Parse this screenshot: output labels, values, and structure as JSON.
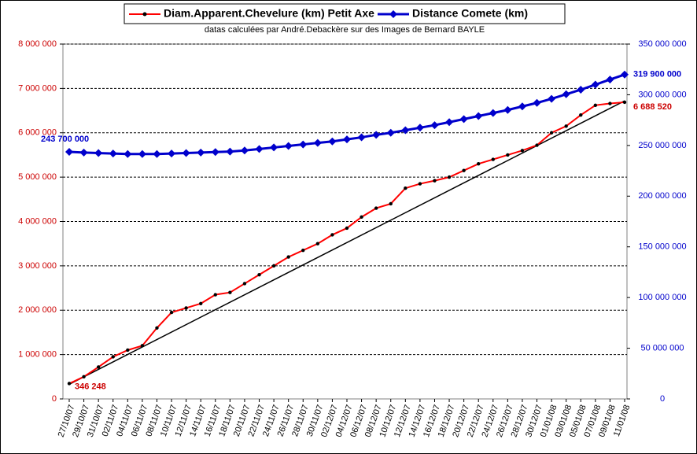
{
  "chart_data": {
    "type": "line",
    "subtitle": "datas calculées par André.Debackère sur des Images de Bernard BAYLE",
    "categories": [
      "27/10/07",
      "29/10/07",
      "31/10/07",
      "02/11/07",
      "04/11/07",
      "06/11/07",
      "08/11/07",
      "10/11/07",
      "12/11/07",
      "14/11/07",
      "16/11/07",
      "18/11/07",
      "20/11/07",
      "22/11/07",
      "24/11/07",
      "26/11/07",
      "28/11/07",
      "30/11/07",
      "02/12/07",
      "04/12/07",
      "06/12/07",
      "08/12/07",
      "10/12/07",
      "12/12/07",
      "14/12/07",
      "16/12/07",
      "18/12/07",
      "20/12/07",
      "22/12/07",
      "24/12/07",
      "26/12/07",
      "28/12/07",
      "30/12/07",
      "01/01/08",
      "03/01/08",
      "05/01/08",
      "07/01/08",
      "09/01/08",
      "11/01/08"
    ],
    "series": [
      {
        "name": "Diam.Apparent.Chevelure (km) Petit Axe",
        "color": "#ff0000",
        "marker_color": "#000000",
        "values": [
          346248,
          500000,
          720000,
          950000,
          1100000,
          1200000,
          1600000,
          1950000,
          2050000,
          2150000,
          2350000,
          2400000,
          2600000,
          2800000,
          3000000,
          3200000,
          3350000,
          3500000,
          3700000,
          3850000,
          4100000,
          4300000,
          4400000,
          4750000,
          4850000,
          4920000,
          5000000,
          5150000,
          5300000,
          5400000,
          5500000,
          5600000,
          5720000,
          6000000,
          6150000,
          6400000,
          6620000,
          6660000,
          6688520
        ]
      },
      {
        "name": "Distance Comete (km)",
        "color": "#0000cc",
        "axis": "y2",
        "values": [
          243700000,
          243000000,
          242500000,
          242000000,
          241500000,
          241500000,
          241500000,
          242000000,
          242500000,
          243000000,
          243500000,
          244000000,
          245000000,
          246500000,
          248000000,
          249500000,
          251000000,
          252500000,
          254000000,
          256000000,
          258000000,
          260500000,
          262500000,
          265000000,
          267500000,
          270000000,
          273000000,
          276000000,
          279000000,
          282000000,
          285000000,
          288500000,
          292000000,
          296000000,
          300500000,
          305000000,
          310000000,
          315000000,
          319900000
        ]
      }
    ],
    "trendline": {
      "color": "#000000",
      "values": [
        330000,
        6720000
      ]
    },
    "annotations": [
      {
        "text": "243 700 000",
        "color": "#0000cc"
      },
      {
        "text": "319 900 000",
        "color": "#0000cc"
      },
      {
        "text": "346 248",
        "color": "#cc0000"
      },
      {
        "text": "6 688 520",
        "color": "#cc0000"
      }
    ],
    "ylim": [
      0,
      8000000
    ],
    "yticks": [
      {
        "value": 0,
        "label": "0"
      },
      {
        "value": 1000000,
        "label": "1 000 000"
      },
      {
        "value": 2000000,
        "label": "2 000 000"
      },
      {
        "value": 3000000,
        "label": "3 000 000"
      },
      {
        "value": 4000000,
        "label": "4 000 000"
      },
      {
        "value": 5000000,
        "label": "5 000 000"
      },
      {
        "value": 6000000,
        "label": "6 000 000"
      },
      {
        "value": 7000000,
        "label": "7 000 000"
      },
      {
        "value": 8000000,
        "label": "8 000 000"
      }
    ],
    "y2lim": [
      0,
      350000000
    ],
    "y2ticks": [
      {
        "value": 0,
        "label": "0"
      },
      {
        "value": 50000000,
        "label": "50 000 000"
      },
      {
        "value": 100000000,
        "label": "100 000 000"
      },
      {
        "value": 150000000,
        "label": "150 000 000"
      },
      {
        "value": 200000000,
        "label": "200 000 000"
      },
      {
        "value": 250000000,
        "label": "250 000 000"
      },
      {
        "value": 300000000,
        "label": "300 000 000"
      },
      {
        "value": 350000000,
        "label": "350 000 000"
      }
    ],
    "grid": true,
    "legend": "top"
  }
}
